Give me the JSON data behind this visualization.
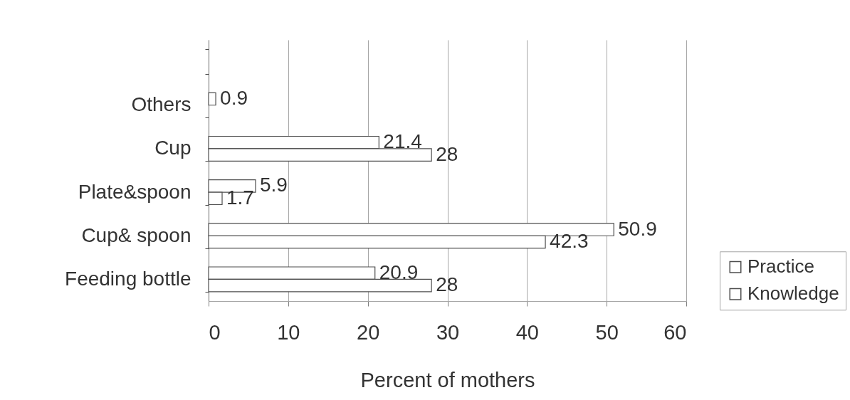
{
  "chart_data": {
    "type": "bar",
    "orientation": "horizontal",
    "xlabel": "Percent of mothers",
    "categories": [
      "Others",
      "Cup",
      "Plate&spoon",
      "Cup& spoon",
      "Feeding bottle"
    ],
    "series": [
      {
        "name": "Practice",
        "color": "#ffffff",
        "values": [
          0.9,
          21.4,
          5.9,
          50.9,
          20.9
        ]
      },
      {
        "name": "Knowledge",
        "color": "#ffffff",
        "values": [
          null,
          28,
          1.7,
          42.3,
          28
        ]
      }
    ],
    "xlim": [
      0,
      60
    ],
    "xticks": [
      0,
      10,
      20,
      30,
      40,
      50,
      60
    ],
    "grid": "x",
    "legend": "bottom right",
    "data_labels": true
  }
}
